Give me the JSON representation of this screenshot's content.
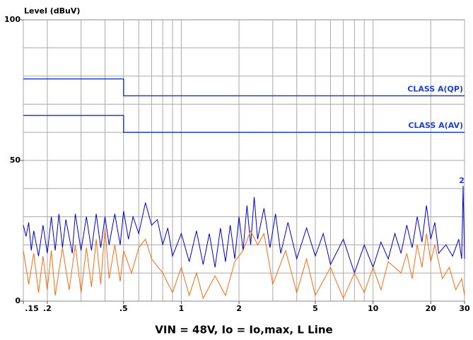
{
  "chart_data": {
    "type": "line",
    "x_scale": "log",
    "y_label": "Level (dBuV)",
    "caption": "VIN = 48V, Io = Io,max, L Line",
    "xlim": [
      0.15,
      30
    ],
    "ylim": [
      0,
      100
    ],
    "xticks": [
      {
        "value": 0.15,
        "label": ".15"
      },
      {
        "value": 0.2,
        "label": ".2"
      },
      {
        "value": 0.5,
        "label": ".5"
      },
      1,
      2,
      5,
      10,
      20,
      30
    ],
    "yticks": [
      0,
      50,
      100
    ],
    "x_gridlines": [
      0.15,
      0.2,
      0.3,
      0.4,
      0.5,
      0.6,
      0.7,
      0.8,
      0.9,
      1,
      2,
      3,
      4,
      5,
      6,
      7,
      8,
      9,
      10,
      20,
      30
    ],
    "y_gridlines": [
      10,
      20,
      30,
      40,
      50,
      60,
      70,
      80,
      90
    ],
    "series": [
      {
        "name": "CLASS A(QP)",
        "color": "#1f3fd0",
        "x": [
          0.15,
          0.5,
          0.5,
          30
        ],
        "values": [
          79,
          79,
          73,
          73
        ]
      },
      {
        "name": "CLASS A(AV)",
        "color": "#1f3fd0",
        "x": [
          0.15,
          0.5,
          0.5,
          30
        ],
        "values": [
          66,
          66,
          60,
          60
        ]
      },
      {
        "color": "#0000cc",
        "x": [
          0.15,
          0.155,
          0.16,
          0.165,
          0.17,
          0.18,
          0.19,
          0.2,
          0.21,
          0.22,
          0.23,
          0.24,
          0.25,
          0.27,
          0.28,
          0.3,
          0.32,
          0.34,
          0.36,
          0.38,
          0.4,
          0.42,
          0.45,
          0.48,
          0.5,
          0.53,
          0.56,
          0.6,
          0.65,
          0.7,
          0.75,
          0.8,
          0.85,
          0.9,
          1.0,
          1.1,
          1.2,
          1.3,
          1.4,
          1.5,
          1.6,
          1.7,
          1.8,
          1.9,
          2.0,
          2.1,
          2.2,
          2.3,
          2.4,
          2.5,
          2.7,
          2.9,
          3.1,
          3.3,
          3.6,
          4.0,
          4.5,
          5.0,
          5.5,
          6.0,
          7,
          8,
          9,
          10,
          11,
          12,
          13,
          14,
          15,
          16,
          17,
          18,
          19,
          20,
          21,
          22,
          24,
          26,
          28,
          29,
          29.5,
          30
        ],
        "values": [
          27,
          23,
          28,
          18,
          25,
          16,
          27,
          17,
          30,
          18,
          31,
          19,
          29,
          17,
          31,
          18,
          30,
          18,
          31,
          19,
          30,
          20,
          31,
          20,
          32,
          22,
          30,
          24,
          35,
          27,
          29,
          20,
          26,
          16,
          24,
          14,
          25,
          13,
          24,
          12,
          26,
          14,
          27,
          15,
          30,
          18,
          34,
          20,
          37,
          22,
          33,
          19,
          31,
          17,
          28,
          15,
          26,
          16,
          24,
          13,
          22,
          10,
          20,
          12,
          21,
          15,
          24,
          17,
          27,
          19,
          30,
          21,
          34,
          22,
          28,
          17,
          20,
          16,
          22,
          15,
          41,
          15
        ]
      },
      {
        "color": "#ff6a10",
        "x": [
          0.15,
          0.16,
          0.17,
          0.18,
          0.19,
          0.2,
          0.21,
          0.22,
          0.24,
          0.26,
          0.28,
          0.3,
          0.32,
          0.34,
          0.36,
          0.38,
          0.4,
          0.42,
          0.45,
          0.48,
          0.5,
          0.55,
          0.6,
          0.65,
          0.7,
          0.8,
          0.9,
          1.0,
          1.1,
          1.2,
          1.3,
          1.5,
          1.7,
          1.9,
          2.1,
          2.3,
          2.5,
          2.7,
          3.0,
          3.5,
          4,
          4.5,
          5,
          6,
          7,
          8,
          9,
          10,
          11,
          12,
          14,
          15,
          16,
          17,
          18,
          19,
          20,
          21,
          23,
          25,
          27,
          29,
          30
        ],
        "values": [
          18,
          6,
          17,
          3,
          16,
          4,
          18,
          2,
          19,
          4,
          20,
          3,
          19,
          5,
          22,
          6,
          26,
          8,
          20,
          7,
          18,
          10,
          19,
          22,
          15,
          10,
          3,
          12,
          2,
          10,
          1,
          9,
          2,
          14,
          18,
          25,
          20,
          24,
          6,
          18,
          3,
          15,
          2,
          12,
          1,
          10,
          3,
          12,
          4,
          14,
          10,
          17,
          8,
          20,
          12,
          24,
          14,
          20,
          8,
          12,
          4,
          8,
          2
        ]
      }
    ],
    "annotations": [
      {
        "text": "2",
        "x": 29.5,
        "y": 41
      }
    ]
  }
}
